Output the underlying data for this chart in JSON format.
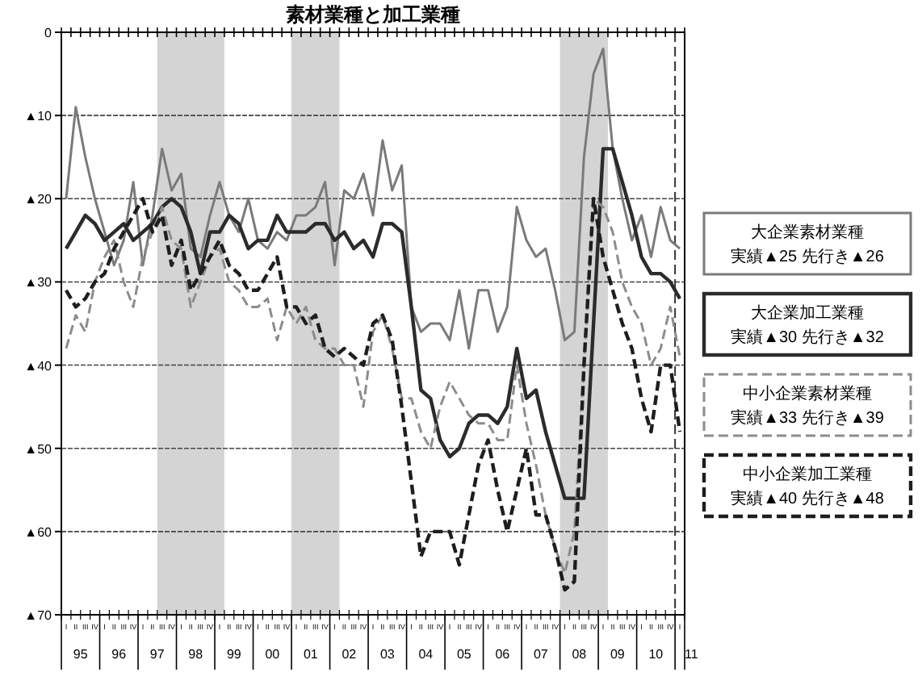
{
  "chart_data": {
    "type": "line",
    "title": "素材業種と加工業種",
    "categories": [
      "I",
      "II",
      "III",
      "IV",
      "I",
      "II",
      "III",
      "IV",
      "I",
      "II",
      "III",
      "IV",
      "I",
      "II",
      "III",
      "IV",
      "I",
      "II",
      "III",
      "IV",
      "I",
      "II",
      "III",
      "IV",
      "I",
      "II",
      "III",
      "IV",
      "I",
      "II",
      "III",
      "IV",
      "I",
      "II",
      "III",
      "IV",
      "I",
      "II",
      "III",
      "IV",
      "I",
      "II",
      "III",
      "IV",
      "I",
      "II",
      "III",
      "IV",
      "I",
      "II",
      "III",
      "IV",
      "I",
      "II",
      "III",
      "IV",
      "I",
      "II",
      "III",
      "IV",
      "I",
      "II",
      "III",
      "IV",
      "I"
    ],
    "series": [
      {
        "name": "大企業素材業種",
        "color": "#7a7a7a",
        "line_style": "solid",
        "values": [
          -20,
          -9,
          -15,
          -20,
          -24,
          -28,
          -25,
          -18,
          -28,
          -22,
          -14,
          -19,
          -17,
          -26,
          -27,
          -22,
          -18,
          -22,
          -24,
          -20,
          -25,
          -26,
          -24,
          -25,
          -22,
          -22,
          -21,
          -18,
          -28,
          -19,
          -20,
          -17,
          -22,
          -13,
          -19,
          -16,
          -33,
          -36,
          -35,
          -35,
          -37,
          -31,
          -38,
          -31,
          -31,
          -36,
          -33,
          -21,
          -25,
          -27,
          -26,
          -31,
          -37,
          -36,
          -15,
          -5,
          -2,
          -14,
          -20,
          -25,
          -22,
          -27,
          -21,
          -25,
          -26
        ]
      },
      {
        "name": "大企業加工業種",
        "color": "#2b2b2b",
        "line_style": "solid",
        "values": [
          -26,
          -24,
          -22,
          -23,
          -25,
          -24,
          -23,
          -25,
          -24,
          -23,
          -21,
          -20,
          -21,
          -24,
          -29,
          -24,
          -24,
          -22,
          -23,
          -26,
          -25,
          -25,
          -22,
          -24,
          -24,
          -24,
          -23,
          -23,
          -25,
          -24,
          -26,
          -25,
          -27,
          -23,
          -23,
          -24,
          -33,
          -43,
          -44,
          -49,
          -51,
          -50,
          -47,
          -46,
          -46,
          -47,
          -45,
          -38,
          -44,
          -43,
          -48,
          -52,
          -56,
          -56,
          -56,
          -35,
          -14,
          -14,
          -18,
          -22,
          -27,
          -29,
          -29,
          -30,
          -32
        ]
      },
      {
        "name": "中小企業素材業種",
        "color": "#8c8c8c",
        "line_style": "dashed",
        "values": [
          -38,
          -34,
          -36,
          -30,
          -27,
          -25,
          -30,
          -33,
          -27,
          -24,
          -21,
          -25,
          -26,
          -33,
          -30,
          -27,
          -26,
          -30,
          -31,
          -33,
          -33,
          -32,
          -37,
          -33,
          -35,
          -33,
          -37,
          -38,
          -38,
          -40,
          -40,
          -45,
          -36,
          -34,
          -38,
          -44,
          -44,
          -48,
          -50,
          -45,
          -42,
          -44,
          -46,
          -47,
          -47,
          -49,
          -49,
          -40,
          -47,
          -52,
          -58,
          -62,
          -65,
          -60,
          -40,
          -20,
          -21,
          -24,
          -30,
          -33,
          -35,
          -40,
          -38,
          -33,
          -39
        ]
      },
      {
        "name": "中小企業加工業種",
        "color": "#1e1e1e",
        "line_style": "dashed",
        "values": [
          -31,
          -33,
          -32,
          -30,
          -29,
          -26,
          -24,
          -22,
          -20,
          -24,
          -22,
          -28,
          -25,
          -31,
          -29,
          -27,
          -25,
          -28,
          -29,
          -31,
          -31,
          -29,
          -27,
          -33,
          -33,
          -35,
          -34,
          -38,
          -39,
          -38,
          -39,
          -40,
          -35,
          -34,
          -37,
          -45,
          -54,
          -63,
          -60,
          -60,
          -60,
          -64,
          -58,
          -52,
          -49,
          -55,
          -60,
          -55,
          -50,
          -58,
          -58,
          -62,
          -67,
          -66,
          -40,
          -20,
          -27,
          -31,
          -35,
          -38,
          -44,
          -48,
          -40,
          -40,
          -48
        ]
      }
    ],
    "annotations": [
      "実績▲25  先行き▲26",
      "実績▲30  先行き▲32",
      "実績▲33  先行き▲39",
      "実績▲40  先行き▲48",
      "95",
      "96",
      "97",
      "98",
      "99",
      "00",
      "01",
      "02",
      "03",
      "04",
      "05",
      "06",
      "07",
      "08",
      "09",
      "10",
      "11"
    ],
    "ylim": [
      -70,
      0
    ],
    "yticks": [
      0,
      {
        "value": -10,
        "label": "▲10"
      },
      {
        "value": -20,
        "label": "▲20"
      },
      {
        "value": -30,
        "label": "▲30"
      },
      {
        "value": -40,
        "label": "▲40"
      },
      {
        "value": -50,
        "label": "▲50"
      },
      {
        "value": -60,
        "label": "▲60"
      },
      {
        "value": -70,
        "label": "▲70"
      }
    ],
    "grid": "y",
    "legend": "right",
    "marker": "none"
  }
}
